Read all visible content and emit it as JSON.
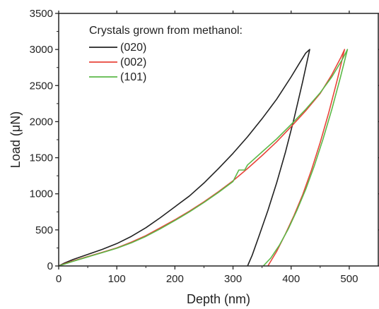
{
  "chart_data": {
    "type": "line",
    "xlabel": "Depth (nm)",
    "ylabel": "Load (μN)",
    "xlim": [
      0,
      550
    ],
    "ylim": [
      0,
      3500
    ],
    "x_ticks": [
      0,
      100,
      200,
      300,
      400,
      500
    ],
    "y_ticks": [
      0,
      500,
      1000,
      1500,
      2000,
      2500,
      3000,
      3500
    ],
    "grid": false,
    "legend": {
      "title": "Crystals grown from methanol:",
      "placement": "top-left"
    },
    "series": [
      {
        "name": "(020)",
        "color": "#222222",
        "x": [
          0,
          10,
          25,
          50,
          75,
          100,
          125,
          150,
          175,
          200,
          225,
          250,
          275,
          300,
          325,
          350,
          375,
          400,
          415,
          425,
          432,
          432,
          420,
          405,
          390,
          375,
          360,
          345,
          333,
          325
        ],
        "y": [
          0,
          40,
          90,
          160,
          230,
          310,
          410,
          530,
          670,
          820,
          970,
          1150,
          1350,
          1560,
          1790,
          2040,
          2310,
          2620,
          2820,
          2950,
          3000,
          3000,
          2560,
          2040,
          1570,
          1150,
          770,
          420,
          150,
          0
        ]
      },
      {
        "name": "(002)",
        "color": "#e8443a",
        "x": [
          0,
          10,
          25,
          50,
          75,
          100,
          125,
          150,
          175,
          200,
          225,
          250,
          275,
          300,
          325,
          350,
          375,
          400,
          425,
          450,
          470,
          485,
          492,
          492,
          480,
          465,
          450,
          435,
          420,
          405,
          390,
          375,
          360
        ],
        "y": [
          0,
          30,
          70,
          130,
          190,
          250,
          330,
          420,
          530,
          640,
          760,
          890,
          1030,
          1180,
          1350,
          1530,
          1720,
          1930,
          2150,
          2390,
          2650,
          2880,
          3000,
          3000,
          2600,
          2130,
          1710,
          1330,
          990,
          700,
          440,
          200,
          0
        ]
      },
      {
        "name": "(101)",
        "color": "#5cb848",
        "x": [
          0,
          10,
          25,
          50,
          75,
          100,
          125,
          150,
          175,
          200,
          225,
          250,
          275,
          300,
          310,
          320,
          325,
          350,
          375,
          400,
          425,
          450,
          470,
          488,
          497,
          497,
          485,
          470,
          455,
          440,
          425,
          410,
          395,
          380,
          365,
          352
        ],
        "y": [
          0,
          25,
          65,
          125,
          185,
          245,
          320,
          410,
          515,
          630,
          750,
          880,
          1020,
          1170,
          1330,
          1330,
          1400,
          1580,
          1760,
          1960,
          2170,
          2400,
          2620,
          2860,
          3000,
          3000,
          2620,
          2170,
          1760,
          1390,
          1060,
          770,
          510,
          290,
          110,
          0
        ]
      }
    ]
  }
}
